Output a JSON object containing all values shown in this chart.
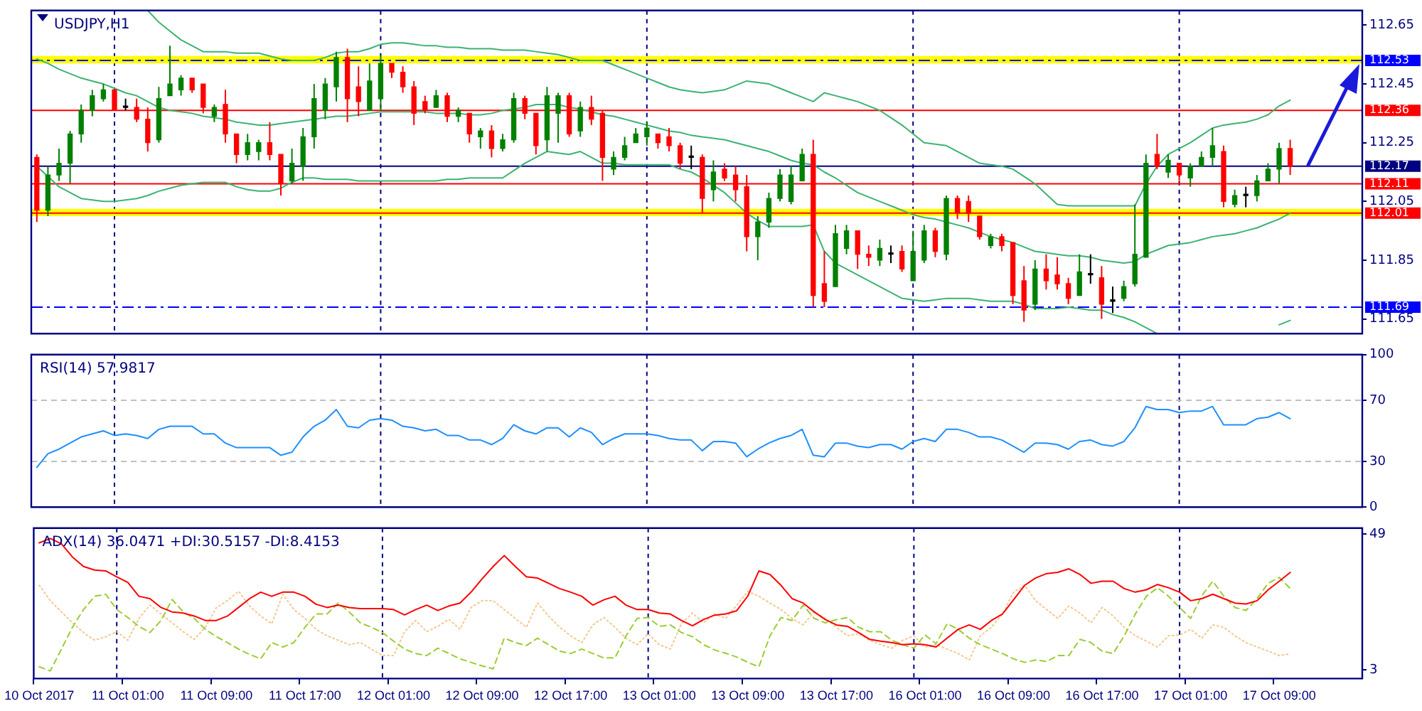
{
  "chart_data": [
    {
      "type": "candlestick",
      "title": "USDJPY,H1",
      "categories": [
        null,
        null,
        null,
        null,
        null,
        null,
        null,
        null,
        null,
        null,
        null,
        null,
        null,
        null,
        null,
        null,
        null,
        null,
        null,
        null,
        null,
        null,
        null,
        null,
        null,
        null,
        null,
        null,
        null,
        null,
        null,
        null,
        null,
        null,
        null,
        null,
        null,
        null,
        null,
        null,
        null,
        null,
        null,
        null,
        null,
        null,
        null,
        null,
        null,
        null,
        null,
        null,
        null,
        null,
        null,
        null,
        null,
        null,
        null,
        null,
        null,
        null,
        null,
        null,
        null,
        null,
        null,
        null,
        null,
        null,
        null,
        null,
        null,
        null,
        null,
        null,
        null,
        null,
        null,
        null,
        null,
        null,
        null,
        null,
        null,
        null,
        null,
        null,
        null,
        null,
        null,
        null,
        null,
        null,
        null,
        null,
        null,
        null,
        null,
        null,
        null,
        null,
        null,
        null,
        null,
        null,
        null,
        null,
        null,
        null,
        null,
        null,
        null,
        null,
        null,
        null,
        null,
        null,
        null,
        null
      ],
      "ohlc": [
        [
          112.2,
          112.21,
          111.98,
          112.02
        ],
        [
          112.02,
          112.17,
          112.0,
          112.14
        ],
        [
          112.14,
          112.23,
          112.12,
          112.18
        ],
        [
          112.18,
          112.29,
          112.11,
          112.28
        ],
        [
          112.28,
          112.38,
          112.25,
          112.36
        ],
        [
          112.36,
          112.43,
          112.34,
          112.41
        ],
        [
          112.4,
          112.45,
          112.39,
          112.43
        ],
        [
          112.43,
          112.43,
          112.36,
          112.36
        ],
        [
          112.37,
          112.4,
          112.36,
          112.37
        ],
        [
          112.37,
          112.4,
          112.32,
          112.33
        ],
        [
          112.33,
          112.37,
          112.22,
          112.25
        ],
        [
          112.26,
          112.44,
          112.25,
          112.4
        ],
        [
          112.41,
          112.58,
          112.41,
          112.45
        ],
        [
          112.43,
          112.48,
          112.41,
          112.47
        ],
        [
          112.47,
          112.47,
          112.42,
          112.43
        ],
        [
          112.45,
          112.45,
          112.35,
          112.37
        ],
        [
          112.34,
          112.38,
          112.32,
          112.37
        ],
        [
          112.38,
          112.43,
          112.25,
          112.28
        ],
        [
          112.28,
          112.28,
          112.18,
          112.21
        ],
        [
          112.21,
          112.28,
          112.19,
          112.25
        ],
        [
          112.22,
          112.26,
          112.19,
          112.25
        ],
        [
          112.25,
          112.32,
          112.19,
          112.21
        ],
        [
          112.21,
          112.21,
          112.07,
          112.11
        ],
        [
          112.12,
          112.23,
          112.11,
          112.18
        ],
        [
          112.17,
          112.3,
          112.12,
          112.27
        ],
        [
          112.27,
          112.45,
          112.23,
          112.4
        ],
        [
          112.36,
          112.47,
          112.33,
          112.45
        ],
        [
          112.44,
          112.56,
          112.39,
          112.54
        ],
        [
          112.54,
          112.57,
          112.32,
          112.4
        ],
        [
          112.44,
          112.51,
          112.34,
          112.39
        ],
        [
          112.36,
          112.52,
          112.36,
          112.46
        ],
        [
          112.4,
          112.55,
          112.36,
          112.52
        ],
        [
          112.52,
          112.52,
          112.47,
          112.49
        ],
        [
          112.49,
          112.51,
          112.42,
          112.44
        ],
        [
          112.44,
          112.46,
          112.31,
          112.35
        ],
        [
          112.39,
          112.41,
          112.35,
          112.36
        ],
        [
          112.37,
          112.43,
          112.37,
          112.41
        ],
        [
          112.41,
          112.42,
          112.32,
          112.34
        ],
        [
          112.34,
          112.37,
          112.32,
          112.36
        ],
        [
          112.35,
          112.35,
          112.25,
          112.28
        ],
        [
          112.27,
          112.3,
          112.23,
          112.29
        ],
        [
          112.29,
          112.31,
          112.2,
          112.23
        ],
        [
          112.23,
          112.28,
          112.22,
          112.26
        ],
        [
          112.26,
          112.42,
          112.25,
          112.4
        ],
        [
          112.4,
          112.41,
          112.33,
          112.35
        ],
        [
          112.35,
          112.35,
          112.21,
          112.24
        ],
        [
          112.26,
          112.44,
          112.22,
          112.41
        ],
        [
          112.35,
          112.42,
          112.25,
          112.41
        ],
        [
          112.41,
          112.42,
          112.27,
          112.28
        ],
        [
          112.29,
          112.39,
          112.27,
          112.37
        ],
        [
          112.37,
          112.41,
          112.31,
          112.33
        ],
        [
          112.35,
          112.36,
          112.12,
          112.2
        ],
        [
          112.16,
          112.22,
          112.14,
          112.2
        ],
        [
          112.2,
          112.27,
          112.19,
          112.24
        ],
        [
          112.25,
          112.3,
          112.25,
          112.28
        ],
        [
          112.27,
          112.32,
          112.24,
          112.3
        ],
        [
          112.28,
          112.28,
          112.23,
          112.25
        ],
        [
          112.27,
          112.3,
          112.22,
          112.24
        ],
        [
          112.24,
          112.25,
          112.16,
          112.18
        ],
        [
          112.2,
          112.24,
          112.16,
          112.2
        ],
        [
          112.2,
          112.21,
          112.01,
          112.06
        ],
        [
          112.09,
          112.19,
          112.05,
          112.15
        ],
        [
          112.16,
          112.18,
          112.12,
          112.13
        ],
        [
          112.14,
          112.17,
          112.05,
          112.09
        ],
        [
          112.1,
          112.14,
          111.88,
          111.93
        ],
        [
          111.93,
          112.0,
          111.85,
          111.98
        ],
        [
          111.98,
          112.08,
          111.96,
          112.06
        ],
        [
          112.06,
          112.16,
          112.05,
          112.14
        ],
        [
          112.05,
          112.17,
          112.04,
          112.14
        ],
        [
          112.12,
          112.23,
          112.12,
          112.21
        ],
        [
          112.21,
          112.26,
          111.69,
          111.73
        ],
        [
          111.77,
          111.88,
          111.69,
          111.71
        ],
        [
          111.76,
          111.97,
          111.76,
          111.94
        ],
        [
          111.89,
          111.97,
          111.87,
          111.95
        ],
        [
          111.95,
          111.95,
          111.82,
          111.87
        ],
        [
          111.87,
          111.9,
          111.83,
          111.86
        ],
        [
          111.85,
          111.92,
          111.83,
          111.89
        ],
        [
          111.87,
          111.9,
          111.84,
          111.87
        ],
        [
          111.88,
          111.9,
          111.81,
          111.82
        ],
        [
          111.78,
          111.95,
          111.78,
          111.88
        ],
        [
          111.85,
          111.97,
          111.84,
          111.95
        ],
        [
          111.95,
          111.96,
          111.86,
          111.88
        ],
        [
          111.87,
          112.07,
          111.85,
          112.06
        ],
        [
          112.06,
          112.07,
          111.99,
          112.01
        ],
        [
          112.05,
          112.07,
          111.98,
          112.01
        ],
        [
          112.0,
          112.0,
          111.92,
          111.93
        ],
        [
          111.9,
          111.94,
          111.89,
          111.93
        ],
        [
          111.93,
          111.94,
          111.88,
          111.9
        ],
        [
          111.91,
          111.91,
          111.7,
          111.73
        ],
        [
          111.78,
          111.83,
          111.64,
          111.68
        ],
        [
          111.7,
          111.85,
          111.68,
          111.82
        ],
        [
          111.82,
          111.87,
          111.75,
          111.78
        ],
        [
          111.8,
          111.86,
          111.75,
          111.77
        ],
        [
          111.77,
          111.79,
          111.7,
          111.72
        ],
        [
          111.73,
          111.87,
          111.73,
          111.81
        ],
        [
          111.8,
          111.87,
          111.77,
          111.8
        ],
        [
          111.79,
          111.83,
          111.65,
          111.7
        ],
        [
          111.71,
          111.76,
          111.67,
          111.71
        ],
        [
          111.72,
          111.78,
          111.71,
          111.76
        ],
        [
          111.77,
          112.04,
          111.76,
          111.87
        ],
        [
          111.86,
          112.21,
          111.86,
          112.18
        ],
        [
          112.21,
          112.28,
          112.16,
          112.17
        ],
        [
          112.15,
          112.21,
          112.13,
          112.19
        ],
        [
          112.18,
          112.18,
          112.12,
          112.14
        ],
        [
          112.13,
          112.18,
          112.1,
          112.17
        ],
        [
          112.17,
          112.22,
          112.17,
          112.2
        ],
        [
          112.2,
          112.3,
          112.17,
          112.24
        ],
        [
          112.22,
          112.24,
          112.03,
          112.05
        ],
        [
          112.04,
          112.09,
          112.03,
          112.07
        ],
        [
          112.07,
          112.1,
          112.03,
          112.07
        ],
        [
          112.07,
          112.14,
          112.05,
          112.12
        ],
        [
          112.12,
          112.18,
          112.12,
          112.16
        ],
        [
          112.16,
          112.25,
          112.11,
          112.23
        ],
        [
          112.23,
          112.26,
          112.14,
          112.17
        ],
        null,
        null,
        null,
        null,
        null,
        null
      ],
      "colors": [
        "#ff0000",
        "#008000",
        "#008000",
        "#008000",
        "#008000",
        "#008000",
        "#008000",
        "#ff0000",
        "#000000",
        "#ff0000",
        "#ff0000",
        "#008000",
        "#008000",
        "#008000",
        "#ff0000",
        "#ff0000",
        "#008000",
        "#ff0000",
        "#ff0000",
        "#008000",
        "#008000",
        "#ff0000",
        "#ff0000",
        "#008000",
        "#008000",
        "#008000",
        "#008000",
        "#008000",
        "#ff0000",
        "#ff0000",
        "#008000",
        "#008000",
        "#ff0000",
        "#ff0000",
        "#ff0000",
        "#ff0000",
        "#008000",
        "#ff0000",
        "#008000",
        "#ff0000",
        "#008000",
        "#ff0000",
        "#008000",
        "#008000",
        "#ff0000",
        "#ff0000",
        "#008000",
        "#008000",
        "#ff0000",
        "#008000",
        "#ff0000",
        "#ff0000",
        "#008000",
        "#008000",
        "#008000",
        "#008000",
        "#ff0000",
        "#ff0000",
        "#ff0000",
        "#000000",
        "#ff0000",
        "#008000",
        "#ff0000",
        "#ff0000",
        "#ff0000",
        "#008000",
        "#008000",
        "#008000",
        "#008000",
        "#008000",
        "#ff0000",
        "#ff0000",
        "#008000",
        "#008000",
        "#ff0000",
        "#ff0000",
        "#008000",
        "#000000",
        "#ff0000",
        "#008000",
        "#008000",
        "#ff0000",
        "#008000",
        "#ff0000",
        "#ff0000",
        "#ff0000",
        "#008000",
        "#ff0000",
        "#ff0000",
        "#ff0000",
        "#008000",
        "#ff0000",
        "#ff0000",
        "#ff0000",
        "#008000",
        "#000000",
        "#ff0000",
        "#000000",
        "#008000",
        "#008000",
        "#008000",
        "#ff0000",
        "#008000",
        "#ff0000",
        "#008000",
        "#008000",
        "#008000",
        "#ff0000",
        "#008000",
        "#000000",
        "#008000",
        "#008000",
        "#008000",
        "#ff0000",
        null,
        null,
        null,
        null,
        null,
        null
      ],
      "series": [
        {
          "type": "line",
          "color": "#3cb371",
          "values": [
            null,
            null,
            null,
            null,
            null,
            null,
            null,
            null,
            null,
            null,
            112.7,
            112.66,
            112.63,
            112.6,
            112.58,
            112.56,
            112.56,
            112.56,
            112.555,
            112.555,
            112.555,
            112.545,
            112.535,
            112.53,
            112.53,
            112.53,
            112.54,
            112.555,
            112.56,
            112.56,
            112.57,
            112.585,
            112.59,
            112.59,
            112.585,
            112.58,
            112.58,
            112.575,
            112.575,
            112.57,
            112.57,
            112.57,
            112.565,
            112.565,
            112.565,
            112.56,
            112.555,
            112.55,
            112.54,
            112.53,
            112.53,
            112.53,
            112.515,
            112.5,
            112.485,
            112.47,
            112.455,
            112.44,
            112.43,
            112.425,
            112.42,
            112.425,
            112.43,
            112.445,
            112.46,
            112.455,
            112.45,
            112.435,
            112.42,
            112.405,
            112.39,
            112.42,
            112.41,
            112.4,
            112.39,
            112.375,
            112.36,
            112.335,
            112.31,
            112.28,
            112.25,
            112.245,
            112.24,
            112.22,
            112.2,
            112.18,
            112.175,
            112.17,
            112.16,
            112.135,
            112.11,
            112.075,
            112.04,
            112.035,
            112.035,
            112.035,
            112.035,
            112.035,
            112.035,
            112.035,
            112.11,
            112.17,
            112.21,
            112.23,
            112.25,
            112.275,
            112.3,
            112.31,
            112.315,
            112.32,
            112.33,
            112.345,
            112.375,
            112.395,
            null,
            null,
            null,
            null,
            null,
            null
          ]
        },
        {
          "type": "line",
          "color": "#3cb371",
          "values": [
            112.535,
            112.52,
            112.5,
            112.485,
            112.47,
            112.46,
            112.45,
            112.435,
            112.42,
            112.41,
            112.39,
            112.37,
            112.36,
            112.355,
            112.35,
            112.34,
            112.335,
            112.33,
            112.32,
            112.315,
            112.31,
            112.31,
            112.315,
            112.32,
            112.325,
            112.33,
            112.335,
            112.34,
            112.34,
            112.345,
            112.35,
            112.355,
            112.355,
            112.355,
            112.355,
            112.355,
            112.35,
            112.35,
            112.35,
            112.345,
            112.345,
            112.35,
            112.36,
            112.365,
            112.37,
            112.38,
            112.38,
            112.38,
            112.37,
            112.365,
            112.355,
            112.345,
            112.34,
            112.33,
            112.32,
            112.31,
            112.3,
            112.29,
            112.285,
            112.275,
            112.27,
            112.265,
            112.26,
            112.25,
            112.24,
            112.23,
            112.22,
            112.205,
            112.19,
            112.18,
            112.175,
            112.15,
            112.13,
            112.105,
            112.08,
            112.065,
            112.05,
            112.035,
            112.02,
            112.005,
            111.995,
            111.99,
            111.98,
            111.97,
            111.96,
            111.945,
            111.93,
            111.92,
            111.91,
            111.895,
            111.88,
            111.875,
            111.87,
            111.865,
            111.865,
            111.86,
            111.85,
            111.845,
            111.84,
            111.845,
            111.87,
            111.885,
            111.9,
            111.905,
            111.91,
            111.92,
            111.93,
            111.935,
            111.94,
            111.95,
            111.96,
            111.975,
            111.99,
            112.01,
            null,
            null,
            null,
            null,
            null,
            null
          ]
        },
        {
          "type": "line",
          "color": "#3cb371",
          "values": [
            112.17,
            112.135,
            112.1,
            112.08,
            112.06,
            112.055,
            112.05,
            112.05,
            112.055,
            112.06,
            112.07,
            112.085,
            112.095,
            112.105,
            112.11,
            112.115,
            112.115,
            112.115,
            112.1,
            112.09,
            112.085,
            112.085,
            112.095,
            112.115,
            112.13,
            112.13,
            112.125,
            112.125,
            112.125,
            112.12,
            112.12,
            112.12,
            112.12,
            112.12,
            112.12,
            112.12,
            112.12,
            112.125,
            112.125,
            112.13,
            112.13,
            112.13,
            112.13,
            112.155,
            112.18,
            112.2,
            112.22,
            112.215,
            112.21,
            112.22,
            112.2,
            112.18,
            112.18,
            112.175,
            112.175,
            112.175,
            112.175,
            112.175,
            112.16,
            112.15,
            112.13,
            112.105,
            112.08,
            112.045,
            112.01,
            111.985,
            111.965,
            111.965,
            111.965,
            111.965,
            111.97,
            111.88,
            111.84,
            111.82,
            111.8,
            111.78,
            111.76,
            111.74,
            111.72,
            111.715,
            111.71,
            111.715,
            111.72,
            111.72,
            111.72,
            111.715,
            111.71,
            111.71,
            111.71,
            111.7,
            111.685,
            111.685,
            111.685,
            111.69,
            111.685,
            111.68,
            111.68,
            111.665,
            111.655,
            111.64,
            111.62,
            111.6,
            null,
            null,
            null,
            null,
            null,
            null,
            null,
            null,
            null,
            null,
            111.63,
            111.645,
            null,
            null,
            null,
            null,
            null,
            null
          ]
        }
      ],
      "ylim": [
        111.6,
        112.7
      ],
      "yticks": [
        111.65,
        111.85,
        112.05,
        112.25,
        112.45,
        112.65
      ],
      "tick_labels": "y",
      "grid": "x",
      "bands": [
        {
          "axis": "y",
          "from": 112.52,
          "to": 112.545,
          "color": "#ffff00"
        },
        {
          "axis": "y",
          "from": 112.0,
          "to": 112.025,
          "color": "#ffff00"
        }
      ],
      "ref_lines": [
        {
          "axis": "y",
          "value": 112.53,
          "label": "112.53",
          "color": "#0000ff",
          "line_style": "dashdot"
        },
        {
          "axis": "y",
          "value": 112.36,
          "label": "112.36",
          "color": "#ff0000",
          "line_style": "solid"
        },
        {
          "axis": "y",
          "value": 112.17,
          "label": "112.17",
          "color": "#000080",
          "line_style": "solid"
        },
        {
          "axis": "y",
          "value": 112.11,
          "label": "112.11",
          "color": "#ff0000",
          "line_style": "solid"
        },
        {
          "axis": "y",
          "value": 112.01,
          "label": "112.01",
          "color": "#ff0000",
          "line_style": "solid"
        },
        {
          "axis": "y",
          "value": 111.69,
          "label": "111.69",
          "color": "#0000ff",
          "line_style": "dashdot"
        }
      ]
    },
    {
      "type": "line",
      "title": "RSI(14) 57.9817",
      "categories": [
        null,
        null,
        null,
        null,
        null,
        null,
        null,
        null,
        null,
        null,
        null,
        null,
        null,
        null,
        null,
        null,
        null,
        null,
        null,
        null,
        null,
        null,
        null,
        null,
        null,
        null,
        null,
        null,
        null,
        null,
        null,
        null,
        null,
        null,
        null,
        null,
        null,
        null,
        null,
        null,
        null,
        null,
        null,
        null,
        null,
        null,
        null,
        null,
        null,
        null,
        null,
        null,
        null,
        null,
        null,
        null,
        null,
        null,
        null,
        null,
        null,
        null,
        null,
        null,
        null,
        null,
        null,
        null,
        null,
        null,
        null,
        null,
        null,
        null,
        null,
        null,
        null,
        null,
        null,
        null,
        null,
        null,
        null,
        null,
        null,
        null,
        null,
        null,
        null,
        null,
        null,
        null,
        null,
        null,
        null,
        null,
        null,
        null,
        null,
        null,
        null,
        null,
        null,
        null,
        null,
        null,
        null,
        null,
        null,
        null,
        null,
        null,
        null,
        null,
        null,
        null,
        null,
        null,
        null,
        null
      ],
      "series": [
        {
          "color": "#1e90ff",
          "values": [
            26,
            35,
            38,
            42,
            46,
            48,
            50,
            47,
            48,
            47,
            45,
            51,
            53,
            53,
            53,
            48,
            48,
            42,
            39,
            39,
            39,
            39,
            34,
            36,
            46,
            53,
            57,
            64,
            53,
            52,
            57,
            58,
            57,
            53,
            52,
            50,
            51,
            47,
            47,
            44,
            44,
            41,
            45,
            54,
            50,
            48,
            52,
            52,
            46,
            52,
            49,
            41,
            45,
            48,
            48,
            48,
            47,
            45,
            44,
            44,
            37,
            43,
            43,
            42,
            33,
            38,
            42,
            45,
            47,
            51,
            34,
            33,
            42,
            42,
            40,
            39,
            41,
            41,
            38,
            43,
            45,
            43,
            51,
            51,
            49,
            46,
            46,
            44,
            40,
            36,
            42,
            42,
            41,
            38,
            43,
            44,
            41,
            40,
            43,
            52,
            66,
            64,
            64,
            62,
            63,
            63,
            66,
            54,
            54,
            54,
            58,
            59,
            62,
            58,
            null,
            null,
            null,
            null,
            null,
            null
          ]
        }
      ],
      "ylim": [
        0,
        100
      ],
      "yticks": [
        0,
        30,
        70,
        100
      ],
      "tick_labels": "y",
      "grid": "x",
      "ref_lines": [
        {
          "axis": "y",
          "value": 70,
          "color": "#c0c0c0",
          "line_style": "dashed"
        },
        {
          "axis": "y",
          "value": 30,
          "color": "#c0c0c0",
          "line_style": "dashed"
        }
      ]
    },
    {
      "type": "line",
      "title": "ADX(14) 36.0471 +DI:30.5157 -DI:8.4153",
      "categories": [
        "10 Oct 2017",
        null,
        null,
        null,
        null,
        null,
        null,
        null,
        "11 Oct 01:00",
        null,
        null,
        null,
        null,
        null,
        null,
        null,
        "11 Oct 09:00",
        null,
        null,
        null,
        null,
        null,
        null,
        null,
        "11 Oct 17:00",
        null,
        null,
        null,
        null,
        null,
        null,
        null,
        "12 Oct 01:00",
        null,
        null,
        null,
        null,
        null,
        null,
        null,
        "12 Oct 09:00",
        null,
        null,
        null,
        null,
        null,
        null,
        null,
        "12 Oct 17:00",
        null,
        null,
        null,
        null,
        null,
        null,
        null,
        "13 Oct 01:00",
        null,
        null,
        null,
        null,
        null,
        null,
        null,
        "13 Oct 09:00",
        null,
        null,
        null,
        null,
        null,
        null,
        null,
        "13 Oct 17:00",
        null,
        null,
        null,
        null,
        null,
        null,
        null,
        "16 Oct 01:00",
        null,
        null,
        null,
        null,
        null,
        null,
        null,
        "16 Oct 09:00",
        null,
        null,
        null,
        null,
        null,
        null,
        null,
        "16 Oct 17:00",
        null,
        null,
        null,
        null,
        null,
        null,
        null,
        "17 Oct 01:00",
        null,
        null,
        null,
        null,
        null,
        null,
        null,
        "17 Oct 09:00",
        null,
        null,
        null,
        null,
        null,
        null,
        null
      ],
      "series": [
        {
          "color": "#ff0000",
          "line_style": "solid",
          "values": [
            46,
            47.5,
            45.7,
            41.2,
            38,
            36.8,
            36.5,
            34.5,
            32.6,
            27.9,
            27.1,
            24.1,
            22.6,
            22.2,
            21.2,
            19.7,
            19.7,
            21.2,
            24.1,
            27.1,
            29.3,
            27.9,
            29.3,
            29.3,
            27.9,
            25.2,
            24.1,
            24.9,
            24.1,
            23.7,
            23.7,
            23.7,
            23.4,
            21.6,
            23.4,
            24.9,
            23.1,
            24.6,
            25.6,
            29.3,
            33.8,
            38,
            41.7,
            38,
            34.5,
            34.1,
            32.3,
            30.5,
            29.3,
            27.9,
            24.9,
            26.7,
            27.9,
            24.9,
            23.4,
            23.4,
            22.2,
            21.9,
            19.7,
            17.9,
            20,
            21.5,
            21.9,
            23,
            28,
            36.5,
            35.3,
            31.6,
            27.1,
            25.6,
            22.6,
            20,
            18.2,
            17.7,
            15.6,
            13.3,
            12.7,
            12.2,
            11.5,
            11.8,
            11.5,
            10.7,
            13.7,
            16.7,
            18.2,
            16.7,
            19.7,
            21.9,
            26.7,
            31.6,
            34.1,
            35.6,
            36,
            37.2,
            35.3,
            32.3,
            33,
            33,
            30.5,
            29.3,
            30.1,
            31.9,
            30.8,
            29.3,
            26.4,
            27.1,
            28.6,
            27.1,
            25.6,
            25.3,
            26.4,
            30.1,
            33,
            36,
            null,
            null,
            null,
            null,
            null,
            null
          ]
        },
        {
          "color": "#9acd32",
          "line_style": "dashed",
          "values": [
            4,
            2.6,
            10,
            17.4,
            23.4,
            27.9,
            28.6,
            23.4,
            20.7,
            17.7,
            15.6,
            19.7,
            26.8,
            22.6,
            20.4,
            16.7,
            14.2,
            12.2,
            10,
            8.2,
            6.7,
            12.2,
            10.7,
            12.2,
            17.4,
            21.9,
            21.9,
            25.6,
            22.6,
            18.9,
            17.4,
            15.6,
            12.7,
            10,
            8.5,
            7.8,
            10.3,
            8.5,
            6.7,
            5.5,
            4.3,
            3.3,
            13.7,
            12.2,
            11.2,
            13.7,
            11.5,
            9.3,
            8.5,
            10,
            8.5,
            7,
            7,
            14.5,
            20.4,
            20.7,
            17.7,
            18.2,
            15.6,
            14.2,
            11.5,
            9.7,
            8.6,
            7.3,
            5.5,
            4,
            14.5,
            20.7,
            19.7,
            24.9,
            20.4,
            18.9,
            20,
            20.7,
            17.4,
            15.9,
            15.9,
            13,
            11.5,
            10.3,
            14.8,
            11.8,
            18.6,
            16.7,
            13.7,
            11.5,
            10,
            8.5,
            6.7,
            5.5,
            6.3,
            5.8,
            7.8,
            7.8,
            13.3,
            12.2,
            9.3,
            8.5,
            14.5,
            21.9,
            27.9,
            30.8,
            27.9,
            24.1,
            20.4,
            28.1,
            33,
            27.9,
            24.1,
            23.1,
            27.1,
            32.3,
            34.3,
            30.5,
            null,
            null,
            null,
            null,
            null,
            null
          ]
        },
        {
          "color": "#f4c890",
          "line_style": "dotted",
          "values": [
            31.6,
            26.4,
            22.6,
            18.9,
            15.6,
            13,
            14.2,
            15.9,
            13,
            20.4,
            24.9,
            21.9,
            18.9,
            15.9,
            13.3,
            17.4,
            24.1,
            26.4,
            29.6,
            24.6,
            21.2,
            18.6,
            28.6,
            23.4,
            20.4,
            16.7,
            14.5,
            13,
            11.5,
            12.2,
            10,
            7.8,
            7.8,
            15.9,
            19.7,
            15.9,
            17.7,
            20.1,
            16.7,
            24.1,
            26.4,
            26.4,
            23.4,
            20.4,
            17.4,
            25.6,
            21.2,
            17.4,
            14.5,
            12.2,
            18.2,
            20.7,
            17.4,
            13.7,
            11.5,
            15.2,
            11.5,
            10,
            18.6,
            22.2,
            18.9,
            21.9,
            20.4,
            24.9,
            29.6,
            27.9,
            25.6,
            23.4,
            20.4,
            18.2,
            22.6,
            20.4,
            17.4,
            14.5,
            15.2,
            13,
            11.5,
            10.3,
            13,
            14.5,
            10.7,
            11.5,
            10,
            8.5,
            6.3,
            14.5,
            17.4,
            21.9,
            29.3,
            31.6,
            26.4,
            23.4,
            20.4,
            24.6,
            22.2,
            18.9,
            24.1,
            21.2,
            17.4,
            14.5,
            12.7,
            10.7,
            14.5,
            14.8,
            16.7,
            13.7,
            18.2,
            17.4,
            14.5,
            12.2,
            10.7,
            9.3,
            7.8,
            8.4,
            null,
            null,
            null,
            null,
            null,
            null
          ]
        }
      ],
      "ylim": [
        0,
        51
      ],
      "yticks": [
        3,
        49
      ]
    }
  ]
}
